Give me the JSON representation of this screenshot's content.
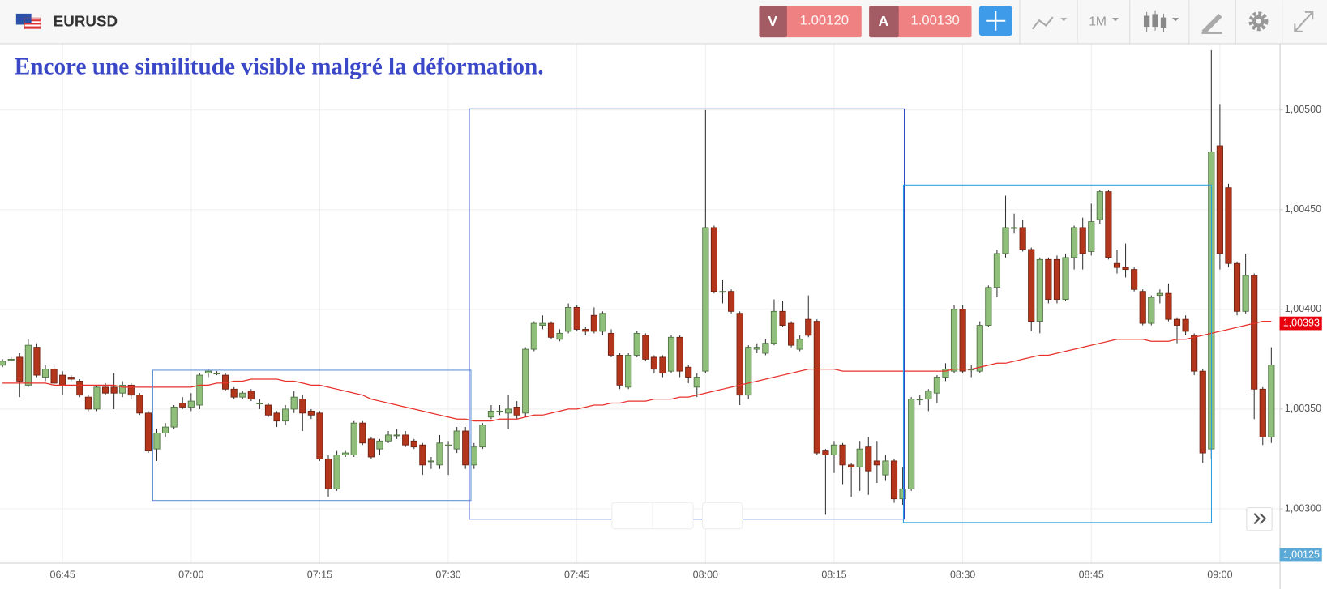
{
  "header": {
    "symbol": "EURUSD",
    "sell_label": "V",
    "sell_price": "1.00120",
    "buy_label": "A",
    "buy_price": "1.00130",
    "timeframe": "1M"
  },
  "chart_data": {
    "type": "candlestick",
    "annotation": "Encore une similitude visible malgré la déformation.",
    "categories": [
      null,
      null,
      null,
      null,
      null,
      null,
      null,
      "06:45",
      null,
      null,
      null,
      null,
      null,
      null,
      null,
      null,
      null,
      null,
      null,
      null,
      null,
      null,
      "07:00",
      null,
      null,
      null,
      null,
      null,
      null,
      null,
      null,
      null,
      null,
      null,
      null,
      null,
      null,
      "07:15",
      null,
      null,
      null,
      null,
      null,
      null,
      null,
      null,
      null,
      null,
      null,
      null,
      null,
      null,
      "07:30",
      null,
      null,
      null,
      null,
      null,
      null,
      null,
      null,
      null,
      null,
      null,
      null,
      null,
      null,
      "07:45",
      null,
      null,
      null,
      null,
      null,
      null,
      null,
      null,
      null,
      null,
      null,
      null,
      null,
      null,
      "08:00",
      null,
      null,
      null,
      null,
      null,
      null,
      null,
      null,
      null,
      null,
      null,
      null,
      null,
      null,
      "08:15",
      null,
      null,
      null,
      null,
      null,
      null,
      null,
      null,
      null,
      null,
      null,
      null,
      null,
      null,
      "08:30",
      null,
      null,
      null,
      null,
      null,
      null,
      null,
      null,
      null,
      null,
      null,
      null,
      null,
      null,
      "08:45",
      null,
      null,
      null,
      null,
      null,
      null,
      null,
      null,
      null,
      null,
      null,
      null,
      null,
      null,
      "09:00",
      null,
      null,
      null,
      null,
      null,
      null
    ],
    "open": [
      1.00372,
      1.00375,
      1.00376,
      1.00362,
      1.00381,
      1.00366,
      1.0037,
      1.00367,
      1.00366,
      1.00364,
      1.00356,
      1.0035,
      1.00361,
      1.00361,
      1.00358,
      1.00362,
      1.00357,
      1.00348,
      1.0033,
      1.00338,
      1.00341,
      1.00353,
      1.00351,
      1.00352,
      1.00368,
      1.00368,
      1.00367,
      1.0036,
      1.00356,
      1.00359,
      1.00353,
      1.00352,
      1.00348,
      1.00344,
      1.0035,
      1.00355,
      1.00349,
      1.00348,
      1.00325,
      1.0031,
      1.00327,
      1.00327,
      1.00343,
      1.00335,
      1.0033,
      1.00334,
      1.00337,
      1.00337,
      1.00334,
      1.00332,
      1.00324,
      1.00322,
      1.00332,
      1.0033,
      1.00339,
      1.00322,
      1.00331,
      1.00346,
      1.00349,
      1.00348,
      1.00351,
      1.00348,
      1.0038,
      1.00392,
      1.00393,
      1.00385,
      1.00389,
      1.00401,
      1.0039,
      1.00397,
      1.00389,
      1.00388,
      1.00377,
      1.00361,
      1.00377,
      1.00387,
      1.00376,
      1.00376,
      1.00369,
      1.00386,
      1.00371,
      1.00361,
      1.00369,
      1.00441,
      1.00409,
      1.00409,
      1.00398,
      1.00357,
      1.0038,
      1.00378,
      1.00383,
      1.00399,
      1.00393,
      1.0038,
      1.00395,
      1.00394,
      1.00329,
      1.00327,
      1.00332,
      1.00322,
      1.00321,
      1.00331,
      1.00324,
      1.00317,
      1.00324,
      1.00305,
      1.0031,
      1.00355,
      1.00355,
      1.00358,
      1.00366,
      1.00369,
      1.004,
      1.0037,
      1.00369,
      1.00392,
      1.00411,
      1.00428,
      1.00441,
      1.00441,
      1.0043,
      1.00394,
      1.00425,
      1.00425,
      1.00405,
      1.00426,
      1.00441,
      1.00429,
      1.00445,
      1.00459,
      1.00423,
      1.00421,
      1.0042,
      1.00409,
      1.00393,
      1.00407,
      1.00408,
      1.00395,
      1.00395,
      1.00387,
      1.00369,
      1.0033,
      1.00482,
      1.00461,
      1.00423,
      1.00399,
      1.00417,
      1.0036,
      1.00336
    ],
    "high": [
      1.00375,
      1.00376,
      1.00378,
      1.00385,
      1.00383,
      1.00372,
      1.00372,
      1.00369,
      1.00367,
      1.00365,
      1.00357,
      1.00362,
      1.00363,
      1.00368,
      1.00364,
      1.00363,
      1.00358,
      1.00349,
      1.0034,
      1.00343,
      1.00352,
      1.00356,
      1.00358,
      1.00368,
      1.0037,
      1.00369,
      1.00368,
      1.00361,
      1.00359,
      1.0036,
      1.00355,
      1.00353,
      1.00349,
      1.00352,
      1.00359,
      1.00357,
      1.0035,
      1.00349,
      1.00327,
      1.00329,
      1.00329,
      1.00344,
      1.00344,
      1.00336,
      1.00335,
      1.00339,
      1.0034,
      1.00339,
      1.00335,
      1.00333,
      1.00326,
      1.00337,
      1.00334,
      1.00341,
      1.00341,
      1.00333,
      1.00343,
      1.00352,
      1.00352,
      1.00357,
      1.00354,
      1.00381,
      1.00394,
      1.00397,
      1.00394,
      1.0039,
      1.00403,
      1.00402,
      1.00391,
      1.00401,
      1.00399,
      1.0039,
      1.00378,
      1.00378,
      1.00389,
      1.00388,
      1.00377,
      1.00377,
      1.00387,
      1.00387,
      1.00372,
      1.00368,
      1.005,
      1.00442,
      1.00415,
      1.0041,
      1.00399,
      1.00382,
      1.00383,
      1.00385,
      1.00405,
      1.00404,
      1.00394,
      1.00387,
      1.00407,
      1.00395,
      1.0033,
      1.00334,
      1.00333,
      1.00323,
      1.00334,
      1.00336,
      1.00334,
      1.00327,
      1.00325,
      1.00321,
      1.00356,
      1.00357,
      1.0036,
      1.00367,
      1.00373,
      1.00402,
      1.00402,
      1.00372,
      1.00394,
      1.00412,
      1.0043,
      1.00457,
      1.00448,
      1.00445,
      1.00431,
      1.00426,
      1.00426,
      1.00427,
      1.00428,
      1.00442,
      1.00446,
      1.00453,
      1.0046,
      1.0046,
      1.0043,
      1.00433,
      1.00421,
      1.0041,
      1.00407,
      1.0041,
      1.00413,
      1.00396,
      1.00397,
      1.00388,
      1.0037,
      1.0053,
      1.00503,
      1.00463,
      1.00424,
      1.00428,
      1.00418,
      1.00361,
      1.00381
    ],
    "low": [
      1.00371,
      1.00374,
      1.00356,
      1.00361,
      1.00366,
      1.00364,
      1.00362,
      1.00357,
      1.00364,
      1.00356,
      1.00349,
      1.00349,
      1.00357,
      1.0035,
      1.00356,
      1.00355,
      1.00347,
      1.00328,
      1.00324,
      1.00336,
      1.0034,
      1.0035,
      1.00349,
      1.0035,
      1.00366,
      1.00367,
      1.00359,
      1.00355,
      1.00355,
      1.00354,
      1.0035,
      1.00346,
      1.00341,
      1.00342,
      1.00348,
      1.00339,
      1.00345,
      1.00324,
      1.00306,
      1.00309,
      1.00326,
      1.00326,
      1.00332,
      1.00325,
      1.00327,
      1.00333,
      1.00335,
      1.00331,
      1.0033,
      1.00317,
      1.0032,
      1.0032,
      1.00317,
      1.00328,
      1.0032,
      1.0032,
      1.0033,
      1.00345,
      1.00347,
      1.0034,
      1.00345,
      1.00346,
      1.00379,
      1.0039,
      1.00385,
      1.00384,
      1.00388,
      1.00389,
      1.00387,
      1.00388,
      1.00387,
      1.00376,
      1.0036,
      1.0036,
      1.00376,
      1.00374,
      1.00368,
      1.00366,
      1.00368,
      1.00366,
      1.00363,
      1.00356,
      1.00368,
      1.00408,
      1.00403,
      1.00398,
      1.00352,
      1.00355,
      1.00378,
      1.00377,
      1.00382,
      1.00391,
      1.00381,
      1.00379,
      1.00386,
      1.00327,
      1.00297,
      1.00318,
      1.00312,
      1.00306,
      1.00309,
      1.00307,
      1.00313,
      1.00314,
      1.00303,
      1.00302,
      1.00309,
      1.00352,
      1.00349,
      1.00353,
      1.00364,
      1.00368,
      1.00368,
      1.00366,
      1.00368,
      1.00391,
      1.00406,
      1.00426,
      1.00438,
      1.00429,
      1.00389,
      1.00388,
      1.00403,
      1.00403,
      1.00404,
      1.0042,
      1.0042,
      1.00427,
      1.00443,
      1.00425,
      1.00418,
      1.00416,
      1.00409,
      1.00392,
      1.00392,
      1.00403,
      1.00394,
      1.00383,
      1.00387,
      1.00367,
      1.00323,
      1.00325,
      1.0042,
      1.00421,
      1.00397,
      1.00398,
      1.00345,
      1.00332,
      1.00333
    ],
    "close": [
      1.00374,
      1.00375,
      1.00364,
      1.00382,
      1.00367,
      1.0037,
      1.00363,
      1.00362,
      1.00365,
      1.00357,
      1.0035,
      1.00361,
      1.00358,
      1.00358,
      1.00362,
      1.00357,
      1.00348,
      1.00329,
      1.00338,
      1.00341,
      1.00351,
      1.00351,
      1.00354,
      1.00367,
      1.00369,
      1.00368,
      1.0036,
      1.00356,
      1.00358,
      1.00355,
      1.00353,
      1.00347,
      1.00344,
      1.0035,
      1.00356,
      1.00348,
      1.00347,
      1.00325,
      1.0031,
      1.00327,
      1.00328,
      1.00343,
      1.00333,
      1.00326,
      1.00334,
      1.00337,
      1.00337,
      1.00332,
      1.00331,
      1.00322,
      1.00324,
      1.00333,
      1.00332,
      1.00339,
      1.00322,
      1.00331,
      1.00342,
      1.00349,
      1.00349,
      1.0035,
      1.00347,
      1.0038,
      1.00393,
      1.00393,
      1.00386,
      1.00388,
      1.00401,
      1.0039,
      1.00389,
      1.00389,
      1.00398,
      1.00377,
      1.00362,
      1.00377,
      1.00388,
      1.00375,
      1.0037,
      1.00368,
      1.00386,
      1.00369,
      1.00366,
      1.00366,
      1.00441,
      1.00409,
      1.00409,
      1.00399,
      1.00357,
      1.00381,
      1.00381,
      1.00383,
      1.00399,
      1.00392,
      1.00382,
      1.00385,
      1.00387,
      1.00328,
      1.00327,
      1.00332,
      1.00322,
      1.00321,
      1.0033,
      1.00319,
      1.00322,
      1.00324,
      1.00305,
      1.0031,
      1.00355,
      1.00355,
      1.00359,
      1.00366,
      1.0037,
      1.004,
      1.00369,
      1.0037,
      1.00392,
      1.00411,
      1.00428,
      1.00441,
      1.00441,
      1.0043,
      1.00394,
      1.00425,
      1.00405,
      1.00405,
      1.00426,
      1.00441,
      1.00428,
      1.00444,
      1.00459,
      1.00426,
      1.00421,
      1.0042,
      1.0041,
      1.00393,
      1.00406,
      1.00408,
      1.00395,
      1.00392,
      1.00389,
      1.00369,
      1.00328,
      1.00479,
      1.00428,
      1.00423,
      1.00399,
      1.00417,
      1.0036,
      1.00336,
      1.00372
    ],
    "up_color": "#8fbf7a",
    "down_color": "#b3361c",
    "moving_average": {
      "color": "#e8302a",
      "values": [
        1.00363,
        1.00363,
        1.00363,
        1.00363,
        1.00363,
        1.00363,
        1.00362,
        1.00362,
        1.00362,
        1.00362,
        1.00362,
        1.00362,
        1.00362,
        1.00362,
        1.00361,
        1.00361,
        1.00361,
        1.00361,
        1.00361,
        1.00361,
        1.00361,
        1.00361,
        1.00361,
        1.00362,
        1.00362,
        1.00363,
        1.00363,
        1.00364,
        1.00364,
        1.00365,
        1.00365,
        1.00365,
        1.00365,
        1.00364,
        1.00364,
        1.00363,
        1.00362,
        1.00362,
        1.00361,
        1.0036,
        1.00359,
        1.00358,
        1.00357,
        1.00355,
        1.00354,
        1.00353,
        1.00352,
        1.00351,
        1.0035,
        1.00349,
        1.00348,
        1.00347,
        1.00346,
        1.00345,
        1.00345,
        1.00344,
        1.00344,
        1.00344,
        1.00345,
        1.00345,
        1.00345,
        1.00346,
        1.00347,
        1.00347,
        1.00348,
        1.00349,
        1.0035,
        1.0035,
        1.00351,
        1.00352,
        1.00352,
        1.00353,
        1.00353,
        1.00354,
        1.00354,
        1.00354,
        1.00355,
        1.00355,
        1.00355,
        1.00356,
        1.00356,
        1.00357,
        1.00358,
        1.00359,
        1.0036,
        1.00361,
        1.00362,
        1.00363,
        1.00364,
        1.00365,
        1.00366,
        1.00367,
        1.00368,
        1.00369,
        1.0037,
        1.0037,
        1.0037,
        1.0037,
        1.00369,
        1.00369,
        1.00369,
        1.00369,
        1.00369,
        1.00369,
        1.00369,
        1.00369,
        1.00369,
        1.00369,
        1.00369,
        1.00369,
        1.00369,
        1.0037,
        1.0037,
        1.0037,
        1.00371,
        1.00372,
        1.00373,
        1.00373,
        1.00374,
        1.00375,
        1.00376,
        1.00377,
        1.00377,
        1.00378,
        1.00379,
        1.0038,
        1.00381,
        1.00382,
        1.00383,
        1.00384,
        1.00385,
        1.00385,
        1.00385,
        1.00385,
        1.00384,
        1.00384,
        1.00384,
        1.00385,
        1.00385,
        1.00386,
        1.00387,
        1.00388,
        1.00389,
        1.0039,
        1.00391,
        1.00392,
        1.00393,
        1.00394,
        1.00394
      ]
    },
    "ylim": [
      1.00273,
      1.00533
    ],
    "yticks": [
      {
        "value": 1.003,
        "label": "1,00300"
      },
      {
        "value": 1.0035,
        "label": "1,00350"
      },
      {
        "value": 1.004,
        "label": "1,00400"
      },
      {
        "value": 1.0045,
        "label": "1,00450"
      },
      {
        "value": 1.005,
        "label": "1,00500"
      }
    ],
    "grid": true,
    "last_price": {
      "value": 1.00393,
      "label": "1,00393",
      "color": "#e8000b"
    },
    "bottom_tag": "1,00125"
  }
}
